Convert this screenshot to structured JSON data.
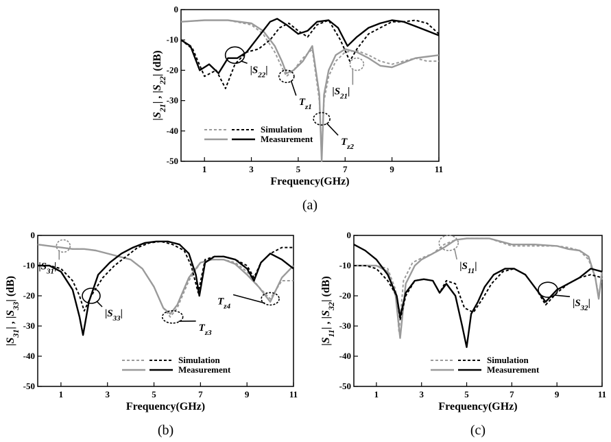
{
  "chart_data": [
    {
      "type": "line",
      "caption": "(a)",
      "xlabel": "Frequency(GHz)",
      "ylabel": "|S21| , |S22| (dB)",
      "xlim": [
        0,
        11
      ],
      "ylim": [
        -50,
        0
      ],
      "xticks": [
        1,
        3,
        5,
        7,
        9,
        11
      ],
      "yticks": [
        0,
        -10,
        -20,
        -30,
        -40,
        -50
      ],
      "grid": false,
      "legend": {
        "position": "bottom-left",
        "labels": [
          "Simulation",
          "Measurement"
        ]
      },
      "series": [
        {
          "name": "|S21| Simulation",
          "color": "#9a9a9a",
          "dash": "dashed",
          "x": [
            0,
            1,
            2,
            3,
            3.5,
            4,
            4.3,
            4.5,
            4.8,
            5.2,
            5.6,
            5.9,
            6.0,
            6.1,
            6.3,
            6.6,
            7.0,
            7.5,
            8.0,
            8.5,
            9.0,
            9.5,
            10,
            10.5,
            11
          ],
          "y": [
            -4,
            -3.5,
            -3.5,
            -5,
            -8,
            -14,
            -19,
            -22,
            -20,
            -16,
            -13,
            -30,
            -48,
            -30,
            -22,
            -17,
            -14,
            -13.5,
            -15,
            -17,
            -18,
            -17,
            -16,
            -17,
            -17
          ]
        },
        {
          "name": "|S21| Measurement",
          "color": "#9a9a9a",
          "dash": "solid",
          "x": [
            0,
            1,
            2,
            3,
            3.5,
            4,
            4.3,
            4.5,
            4.8,
            5.2,
            5.6,
            5.9,
            6.0,
            6.1,
            6.3,
            6.6,
            7.0,
            7.5,
            8.0,
            8.5,
            9.0,
            9.5,
            10,
            10.5,
            11
          ],
          "y": [
            -4,
            -3.5,
            -3.5,
            -4.5,
            -7,
            -12,
            -17,
            -21,
            -20,
            -17,
            -12,
            -28,
            -50,
            -28,
            -20,
            -15,
            -13,
            -14,
            -16,
            -18.5,
            -19,
            -17.5,
            -16,
            -15.5,
            -15
          ]
        },
        {
          "name": "|S22| Simulation",
          "color": "#000000",
          "dash": "dashed",
          "x": [
            0,
            0.5,
            1,
            1.5,
            1.9,
            2.3,
            2.8,
            3.3,
            3.8,
            4.2,
            4.6,
            5.0,
            5.4,
            5.8,
            6.3,
            6.8,
            7.2,
            7.5,
            8.0,
            8.5,
            9.0,
            9.5,
            10,
            10.5,
            11
          ],
          "y": [
            -10,
            -13,
            -22,
            -20,
            -26,
            -18,
            -14,
            -13,
            -10,
            -6,
            -4.5,
            -7,
            -9,
            -5,
            -3.5,
            -10,
            -17,
            -13,
            -8,
            -6,
            -4,
            -4,
            -3.5,
            -4.5,
            -8
          ]
        },
        {
          "name": "|S22| Measurement",
          "color": "#000000",
          "dash": "solid",
          "x": [
            0,
            0.4,
            0.8,
            1.2,
            1.6,
            2.0,
            2.4,
            2.8,
            3.3,
            3.8,
            4.1,
            4.5,
            5.0,
            5.4,
            5.8,
            6.3,
            6.7,
            7.1,
            7.5,
            8.0,
            8.5,
            9.0,
            9.5,
            10,
            10.5,
            11
          ],
          "y": [
            -10,
            -12,
            -20,
            -18,
            -21,
            -16,
            -16,
            -14,
            -9,
            -4,
            -3,
            -5,
            -8,
            -7,
            -4,
            -3.5,
            -6,
            -12,
            -9,
            -6,
            -4.5,
            -3.5,
            -4,
            -5.5,
            -7,
            -8.5
          ]
        }
      ],
      "annotations": [
        {
          "label": "|S22|",
          "x": 2.3,
          "y": -15
        },
        {
          "label": "Tz1",
          "x": 4.5,
          "y": -22
        },
        {
          "label": "Tz2",
          "x": 6.0,
          "y": -36
        },
        {
          "label": "|S21|",
          "x": 7.5,
          "y": -18
        }
      ]
    },
    {
      "type": "line",
      "caption": "(b)",
      "xlabel": "Frequency(GHz)",
      "ylabel": "|S31| , |S33| (dB)",
      "xlim": [
        0,
        11
      ],
      "ylim": [
        -50,
        0
      ],
      "xticks": [
        1,
        3,
        5,
        7,
        9,
        11
      ],
      "yticks": [
        0,
        -10,
        -20,
        -30,
        -40,
        -50
      ],
      "grid": false,
      "legend": {
        "position": "bottom-right",
        "labels": [
          "Simulation",
          "Measurement"
        ]
      },
      "series": [
        {
          "name": "|S31| Simulation",
          "color": "#9a9a9a",
          "dash": "dashed",
          "x": [
            0,
            0.5,
            1.0,
            1.5,
            2.0,
            2.5,
            3.0,
            3.5,
            4.0,
            4.5,
            5.0,
            5.4,
            5.7,
            6.0,
            6.5,
            7.0,
            7.5,
            8.0,
            8.5,
            9.0,
            9.5,
            10.0,
            10.5,
            11
          ],
          "y": [
            -3,
            -3.5,
            -4,
            -4.5,
            -4.5,
            -5,
            -6,
            -7,
            -8,
            -11,
            -17,
            -24,
            -27,
            -24,
            -15,
            -9,
            -8,
            -8,
            -9,
            -12,
            -17,
            -21,
            -15,
            -15
          ]
        },
        {
          "name": "|S31| Measurement",
          "color": "#9a9a9a",
          "dash": "solid",
          "x": [
            0,
            0.5,
            1.0,
            1.5,
            2.0,
            2.5,
            3.0,
            3.5,
            4.0,
            4.5,
            5.0,
            5.4,
            5.7,
            6.0,
            6.5,
            7.0,
            7.5,
            8.0,
            8.5,
            9.0,
            9.5,
            10.0,
            10.5,
            11
          ],
          "y": [
            -3,
            -3.5,
            -4,
            -4.5,
            -4.5,
            -5,
            -6,
            -7,
            -8,
            -11,
            -17,
            -24,
            -26,
            -23,
            -14,
            -9,
            -8,
            -8,
            -9.5,
            -13,
            -17,
            -22,
            -14,
            -10
          ]
        },
        {
          "name": "|S33| Simulation",
          "color": "#000000",
          "dash": "dashed",
          "x": [
            0,
            0.5,
            1.0,
            1.5,
            1.8,
            2.0,
            2.3,
            2.8,
            3.3,
            3.8,
            4.3,
            4.8,
            5.3,
            5.8,
            6.3,
            6.6,
            6.9,
            7.2,
            7.6,
            8.0,
            8.5,
            9.0,
            9.3,
            9.6,
            10.0,
            10.5,
            11
          ],
          "y": [
            -10,
            -10,
            -11,
            -15,
            -20,
            -25,
            -20,
            -14,
            -10,
            -7,
            -4,
            -2.5,
            -2,
            -3,
            -5,
            -10,
            -19,
            -8,
            -7,
            -7,
            -8,
            -10,
            -14,
            -9,
            -6,
            -4,
            -4
          ]
        },
        {
          "name": "|S33| Measurement",
          "color": "#000000",
          "dash": "solid",
          "x": [
            0,
            0.5,
            1.0,
            1.5,
            1.8,
            1.95,
            2.2,
            2.6,
            3.1,
            3.6,
            4.1,
            4.6,
            5.1,
            5.6,
            6.1,
            6.5,
            6.8,
            6.95,
            7.2,
            7.6,
            8.0,
            8.5,
            9.0,
            9.3,
            9.6,
            10.0,
            10.5,
            11
          ],
          "y": [
            -10,
            -10,
            -12,
            -18,
            -27,
            -33,
            -22,
            -13,
            -9,
            -6,
            -4,
            -2.5,
            -2,
            -2,
            -3,
            -6,
            -13,
            -20,
            -9,
            -7,
            -7,
            -8,
            -11,
            -15,
            -9,
            -6,
            -8,
            -11
          ]
        }
      ],
      "annotations": [
        {
          "label": "|S31|",
          "x": 1.1,
          "y": -3.5
        },
        {
          "label": "|S33|",
          "x": 2.3,
          "y": -20
        },
        {
          "label": "Tz3",
          "x": 5.8,
          "y": -27
        },
        {
          "label": "Tz4",
          "x": 10.0,
          "y": -21
        }
      ]
    },
    {
      "type": "line",
      "caption": "(c)",
      "xlabel": "Frequency(GHz)",
      "ylabel": "|S11| , |S32| (dB)",
      "xlim": [
        0,
        11
      ],
      "ylim": [
        -50,
        0
      ],
      "xticks": [
        1,
        3,
        5,
        7,
        9,
        11
      ],
      "yticks": [
        0,
        -10,
        -20,
        -30,
        -40,
        -50
      ],
      "grid": false,
      "legend": {
        "position": "bottom-right",
        "labels": [
          "Simulation",
          "Measurement"
        ]
      },
      "series": [
        {
          "name": "|S11| Simulation",
          "color": "#9a9a9a",
          "dash": "dashed",
          "x": [
            0,
            0.5,
            1.0,
            1.5,
            1.85,
            2.0,
            2.2,
            2.6,
            3.0,
            3.5,
            4.0,
            4.5,
            5.0,
            6.0,
            7.0,
            8.0,
            9.0,
            9.5,
            10.0,
            10.4,
            10.7,
            10.85,
            11
          ],
          "y": [
            -10,
            -10,
            -10,
            -11,
            -18,
            -32,
            -15,
            -9,
            -7.5,
            -6,
            -3,
            -1.5,
            -1,
            -1,
            -3.5,
            -3.5,
            -3.5,
            -4,
            -5,
            -8,
            -14,
            -20,
            -14
          ]
        },
        {
          "name": "|S11| Measurement",
          "color": "#9a9a9a",
          "dash": "solid",
          "x": [
            0,
            0.5,
            1.0,
            1.5,
            1.85,
            2.05,
            2.3,
            2.7,
            3.0,
            3.5,
            4.0,
            4.5,
            5.0,
            6.0,
            6.5,
            7.0,
            8.0,
            9.0,
            9.5,
            10.0,
            10.4,
            10.7,
            10.85,
            11
          ],
          "y": [
            -10,
            -10,
            -10,
            -12,
            -20,
            -34,
            -16,
            -10,
            -8,
            -6,
            -4,
            -1.5,
            -1,
            -1,
            -2,
            -3,
            -3,
            -3.5,
            -4.5,
            -5,
            -7,
            -14,
            -21,
            -12
          ]
        },
        {
          "name": "|S32| Simulation",
          "color": "#000000",
          "dash": "dashed",
          "x": [
            0,
            0.5,
            1.0,
            1.5,
            1.9,
            2.05,
            2.3,
            2.7,
            3.1,
            3.5,
            3.8,
            4.1,
            4.5,
            4.9,
            5.3,
            5.7,
            6.1,
            6.6,
            7.1,
            7.6,
            8.1,
            8.5,
            9.0,
            9.5,
            10.0,
            10.5,
            11
          ],
          "y": [
            -10,
            -10,
            -11,
            -15,
            -20,
            -28,
            -20,
            -15,
            -14.5,
            -15,
            -19,
            -15,
            -16,
            -24,
            -25.5,
            -21,
            -16,
            -12,
            -11,
            -13,
            -18,
            -23,
            -19,
            -16,
            -14,
            -13,
            -14
          ]
        },
        {
          "name": "|S32| Measurement",
          "color": "#000000",
          "dash": "solid",
          "x": [
            0,
            0.5,
            1.0,
            1.5,
            1.9,
            2.05,
            2.3,
            2.7,
            3.1,
            3.5,
            3.8,
            4.1,
            4.5,
            4.8,
            5.0,
            5.2,
            5.5,
            5.8,
            6.2,
            6.7,
            7.1,
            7.6,
            8.1,
            8.5,
            9.0,
            9.5,
            10.0,
            10.5,
            11
          ],
          "y": [
            -3,
            -5,
            -8,
            -13,
            -20,
            -27,
            -19,
            -15,
            -14.5,
            -15,
            -19,
            -16,
            -20,
            -30,
            -37,
            -26,
            -22,
            -17,
            -13,
            -11,
            -11,
            -13,
            -18,
            -22,
            -18,
            -16,
            -14,
            -11,
            -12
          ]
        }
      ],
      "annotations": [
        {
          "label": "|S11|",
          "x": 4.2,
          "y": -2.5
        },
        {
          "label": "|S32|",
          "x": 8.6,
          "y": -18
        }
      ]
    }
  ]
}
